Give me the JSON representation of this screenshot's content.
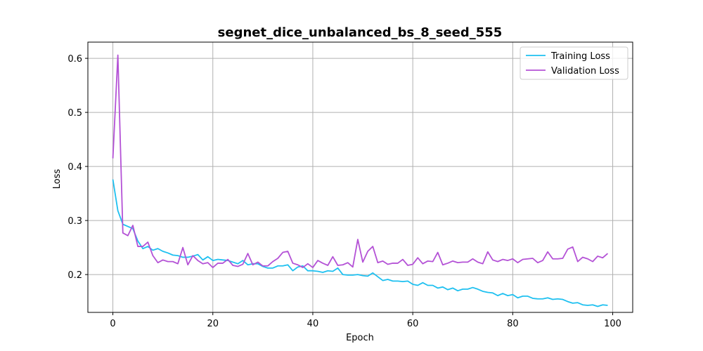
{
  "chart_data": {
    "type": "line",
    "title": "segnet_dice_unbalanced_bs_8_seed_555",
    "xlabel": "Epoch",
    "ylabel": "Loss",
    "xlim": [
      -5,
      104
    ],
    "ylim": [
      0.13,
      0.63
    ],
    "xticks": [
      0,
      20,
      40,
      60,
      80,
      100
    ],
    "yticks": [
      0.2,
      0.3,
      0.4,
      0.5,
      0.6
    ],
    "grid": true,
    "legend_position": "top-right",
    "series": [
      {
        "name": "Training Loss",
        "color": "#1ec0f0",
        "values": [
          0.376,
          0.318,
          0.293,
          0.289,
          0.285,
          0.262,
          0.248,
          0.252,
          0.245,
          0.248,
          0.243,
          0.24,
          0.236,
          0.235,
          0.232,
          0.232,
          0.234,
          0.237,
          0.227,
          0.233,
          0.226,
          0.228,
          0.227,
          0.226,
          0.223,
          0.22,
          0.226,
          0.218,
          0.22,
          0.22,
          0.215,
          0.212,
          0.212,
          0.216,
          0.216,
          0.218,
          0.207,
          0.214,
          0.216,
          0.207,
          0.207,
          0.206,
          0.204,
          0.207,
          0.206,
          0.212,
          0.2,
          0.199,
          0.199,
          0.2,
          0.198,
          0.197,
          0.203,
          0.196,
          0.189,
          0.191,
          0.188,
          0.188,
          0.187,
          0.188,
          0.182,
          0.18,
          0.185,
          0.18,
          0.18,
          0.175,
          0.177,
          0.172,
          0.175,
          0.17,
          0.173,
          0.173,
          0.176,
          0.173,
          0.169,
          0.167,
          0.166,
          0.161,
          0.165,
          0.161,
          0.163,
          0.157,
          0.16,
          0.16,
          0.156,
          0.155,
          0.155,
          0.157,
          0.154,
          0.155,
          0.154,
          0.15,
          0.147,
          0.148,
          0.144,
          0.143,
          0.144,
          0.141,
          0.144,
          0.143
        ]
      },
      {
        "name": "Validation Loss",
        "color": "#b452d6",
        "values": [
          0.415,
          0.606,
          0.277,
          0.272,
          0.291,
          0.252,
          0.252,
          0.26,
          0.235,
          0.222,
          0.227,
          0.224,
          0.224,
          0.22,
          0.25,
          0.218,
          0.235,
          0.226,
          0.22,
          0.222,
          0.213,
          0.221,
          0.221,
          0.228,
          0.217,
          0.215,
          0.219,
          0.239,
          0.218,
          0.223,
          0.216,
          0.216,
          0.224,
          0.23,
          0.241,
          0.243,
          0.221,
          0.218,
          0.213,
          0.22,
          0.213,
          0.226,
          0.221,
          0.217,
          0.233,
          0.217,
          0.218,
          0.222,
          0.214,
          0.265,
          0.223,
          0.243,
          0.252,
          0.222,
          0.225,
          0.219,
          0.221,
          0.221,
          0.228,
          0.217,
          0.219,
          0.231,
          0.22,
          0.225,
          0.224,
          0.241,
          0.218,
          0.221,
          0.225,
          0.222,
          0.223,
          0.223,
          0.229,
          0.223,
          0.22,
          0.242,
          0.227,
          0.224,
          0.228,
          0.226,
          0.229,
          0.222,
          0.228,
          0.229,
          0.23,
          0.222,
          0.226,
          0.242,
          0.229,
          0.229,
          0.23,
          0.247,
          0.251,
          0.224,
          0.232,
          0.229,
          0.224,
          0.234,
          0.231,
          0.239
        ]
      }
    ]
  }
}
